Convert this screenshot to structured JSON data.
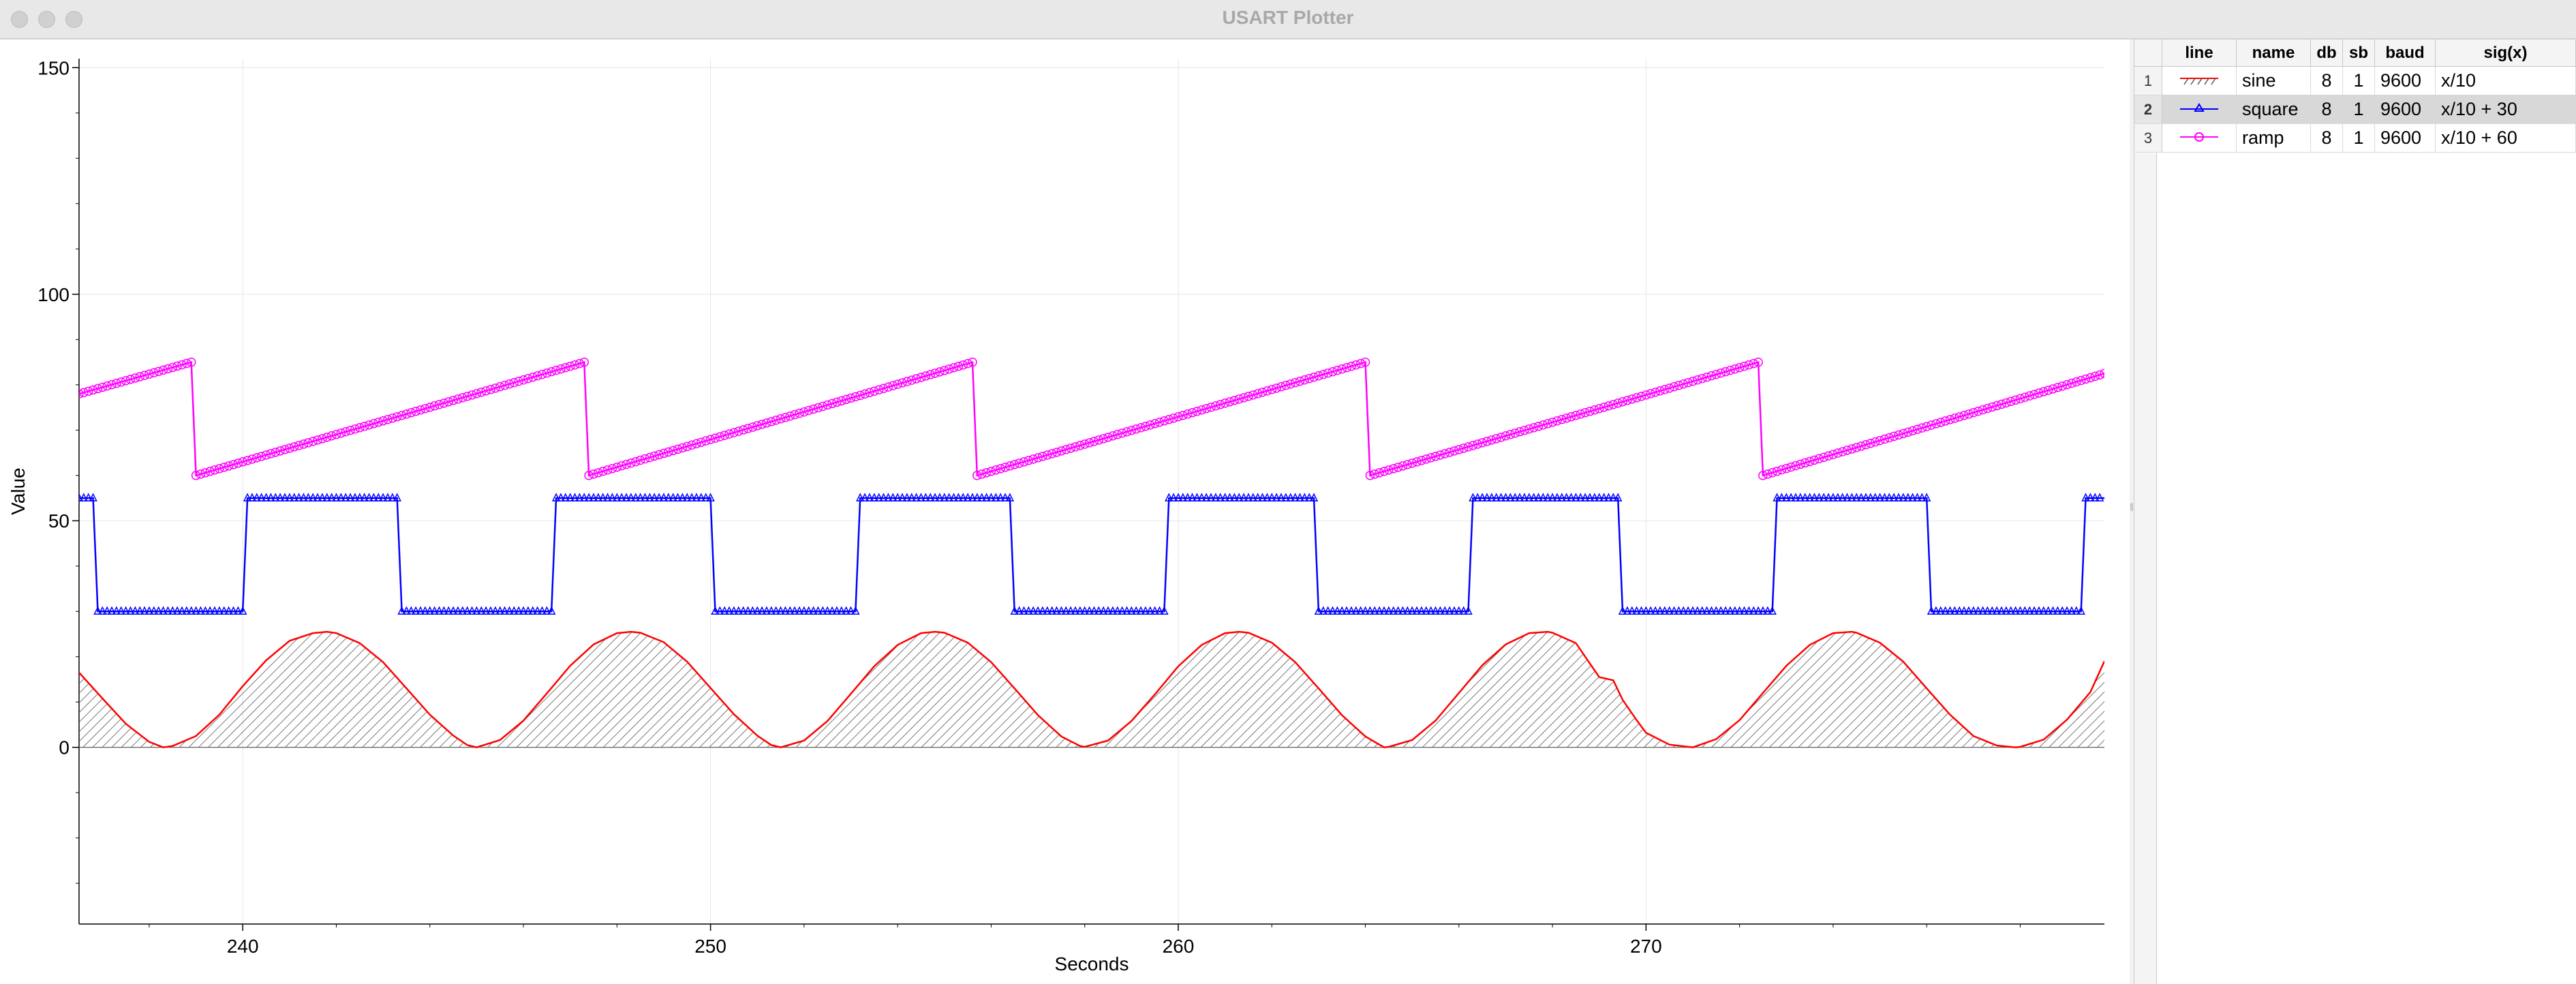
{
  "window": {
    "title": "USART Plotter"
  },
  "table": {
    "headers": [
      "line",
      "name",
      "db",
      "sb",
      "baud",
      "sig(x)"
    ],
    "rows": [
      {
        "num": "1",
        "line_icon": "red-hatched-line-icon",
        "name": "sine",
        "db": "8",
        "sb": "1",
        "baud": "9600",
        "sig": "x/10"
      },
      {
        "num": "2",
        "line_icon": "blue-triangle-marker-line-icon",
        "name": "square",
        "db": "8",
        "sb": "1",
        "baud": "9600",
        "sig": "x/10 + 30"
      },
      {
        "num": "3",
        "line_icon": "magenta-circle-marker-line-icon",
        "name": "ramp",
        "db": "8",
        "sb": "1",
        "baud": "9600",
        "sig": "x/10 + 60"
      }
    ],
    "selected_row": 2
  },
  "colors": {
    "sine": "#ff0000",
    "square": "#0000ff",
    "ramp": "#ff00ff",
    "fill_hatch": "#555555"
  },
  "chart_data": {
    "type": "line",
    "xlabel": "Seconds",
    "ylabel": "Value",
    "xlim": [
      236.5,
      279.8
    ],
    "ylim": [
      -39,
      152
    ],
    "x_ticks": [
      240,
      250,
      260,
      270
    ],
    "y_ticks": [
      0,
      50,
      100,
      150
    ],
    "grid": true,
    "series": [
      {
        "name": "sine",
        "style": "line, hatched fill to zero",
        "x": [
          236.5,
          237.0,
          237.5,
          238.0,
          238.3,
          238.5,
          239.0,
          239.5,
          240.0,
          240.5,
          241.0,
          241.5,
          241.8,
          242.0,
          242.5,
          243.0,
          243.5,
          244.0,
          244.5,
          244.8,
          245.0,
          245.5,
          246.0,
          246.5,
          247.0,
          247.5,
          248.0,
          248.3,
          248.5,
          249.0,
          249.5,
          250.0,
          250.5,
          251.0,
          251.3,
          251.5,
          252.0,
          252.5,
          253.0,
          253.5,
          254.0,
          254.5,
          254.8,
          255.0,
          255.5,
          256.0,
          256.5,
          257.0,
          257.5,
          257.9,
          258.0,
          258.5,
          259.0,
          259.5,
          260.0,
          260.5,
          261.0,
          261.3,
          261.5,
          262.0,
          262.5,
          263.0,
          263.5,
          264.0,
          264.4,
          264.5,
          265.0,
          265.5,
          266.0,
          266.5,
          267.0,
          267.5,
          267.9,
          268.0,
          268.5,
          269.0,
          269.3,
          269.5,
          269.8,
          270.0,
          270.5,
          271.0,
          271.5,
          272.0,
          272.5,
          273.0,
          273.5,
          274.0,
          274.4,
          274.5,
          275.0,
          275.5,
          276.0,
          276.5,
          277.0,
          277.5,
          277.9,
          278.0,
          278.5,
          279.0,
          279.5,
          279.8
        ],
        "values": [
          16.5,
          10.8,
          5.2,
          1.2,
          0.0,
          0.3,
          2.5,
          7.2,
          13.5,
          19.2,
          23.5,
          25.2,
          25.5,
          25.2,
          23.0,
          18.8,
          13.0,
          7.2,
          2.6,
          0.5,
          0.0,
          1.6,
          5.9,
          11.9,
          18.0,
          22.7,
          25.2,
          25.5,
          25.3,
          23.2,
          18.9,
          13.1,
          7.3,
          2.6,
          0.5,
          0.0,
          1.5,
          5.8,
          11.8,
          17.9,
          22.6,
          25.2,
          25.5,
          25.3,
          23.1,
          18.8,
          13.0,
          7.1,
          2.4,
          0.3,
          0.1,
          1.5,
          5.8,
          11.7,
          17.9,
          22.6,
          25.2,
          25.5,
          25.3,
          23.1,
          18.8,
          13.0,
          7.1,
          2.4,
          0.0,
          0.1,
          1.6,
          5.9,
          12.0,
          18.1,
          22.7,
          25.2,
          25.5,
          25.3,
          23.0,
          15.5,
          14.8,
          10.5,
          6.0,
          3.2,
          0.6,
          0.0,
          1.8,
          6.0,
          12.0,
          18.0,
          22.6,
          25.2,
          25.5,
          25.3,
          23.1,
          18.9,
          13.0,
          7.2,
          2.5,
          0.4,
          0.0,
          0.1,
          1.7,
          6.1,
          12.2,
          19.0
        ]
      },
      {
        "name": "square",
        "style": "line with triangle markers",
        "x": [
          236.5,
          236.8,
          236.9,
          240.0,
          240.1,
          243.3,
          243.4,
          246.6,
          246.7,
          250.0,
          250.1,
          253.1,
          253.2,
          256.4,
          256.5,
          259.7,
          259.8,
          262.9,
          263.0,
          266.2,
          266.3,
          269.4,
          269.5,
          272.7,
          272.8,
          276.0,
          276.1,
          279.3,
          279.4,
          279.8
        ],
        "values": [
          55,
          55,
          30,
          30,
          55,
          55,
          30,
          30,
          55,
          55,
          30,
          30,
          55,
          55,
          30,
          30,
          55,
          55,
          30,
          30,
          55,
          55,
          30,
          30,
          55,
          55,
          30,
          30,
          55,
          55
        ]
      },
      {
        "name": "ramp",
        "style": "line with circle markers",
        "x": [
          236.5,
          238.9,
          239.0,
          247.3,
          247.4,
          255.6,
          255.7,
          264.0,
          264.1,
          272.4,
          272.5,
          279.8
        ],
        "values": [
          78,
          85,
          60,
          85,
          60,
          85,
          60,
          85,
          60,
          85,
          60,
          82.5
        ]
      }
    ]
  }
}
